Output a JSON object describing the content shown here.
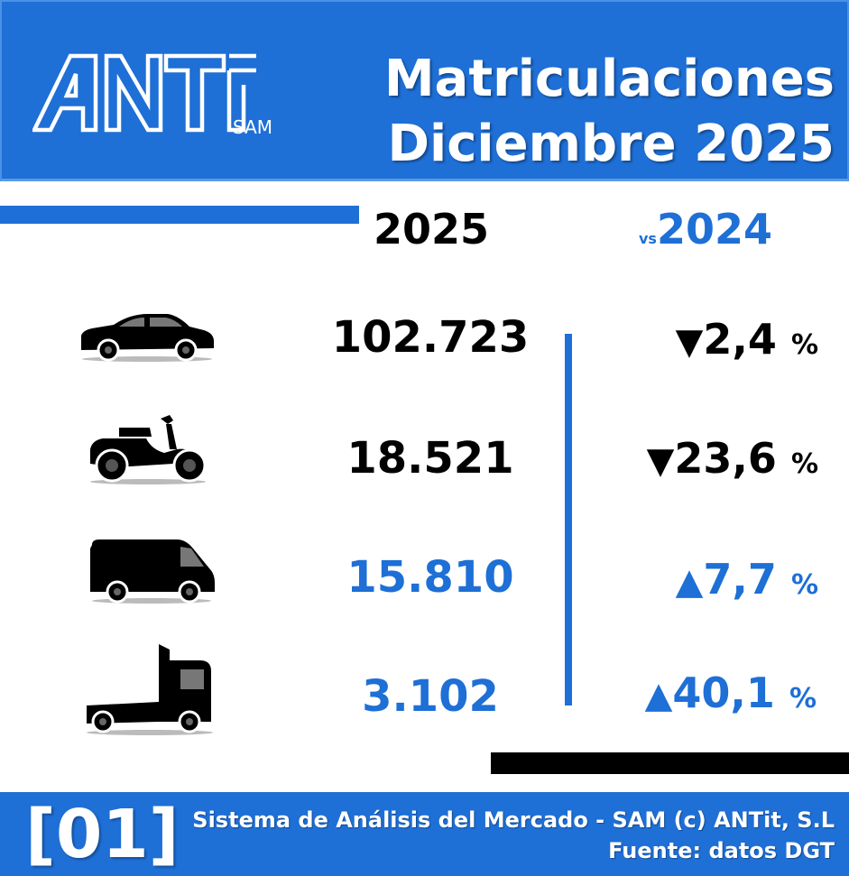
{
  "header": {
    "logo_text": "ANTit",
    "logo_sub": "SAM",
    "title_line1": "Matriculaciones",
    "title_line2": "Diciembre 2025"
  },
  "columns": {
    "current_year": "2025",
    "vs_label": "vs",
    "previous_year": "2024"
  },
  "rows": [
    {
      "vehicle": "car-icon",
      "value": "102.723",
      "trend": "down",
      "change": "2,4",
      "unit": "%"
    },
    {
      "vehicle": "motorcycle-icon",
      "value": "18.521",
      "trend": "down",
      "change": "23,6",
      "unit": "%"
    },
    {
      "vehicle": "van-icon",
      "value": "15.810",
      "trend": "up",
      "change": "7,7",
      "unit": "%"
    },
    {
      "vehicle": "truck-icon",
      "value": "3.102",
      "trend": "up",
      "change": "40,1",
      "unit": "%"
    }
  ],
  "footer": {
    "code": "[01]",
    "line1": "Sistema de Análisis del Mercado - SAM (c) ANTit, S.L",
    "line2": "Fuente: datos DGT"
  },
  "colors": {
    "accent": "#1e6fd6",
    "text_dark": "#000000",
    "background": "#ffffff"
  }
}
